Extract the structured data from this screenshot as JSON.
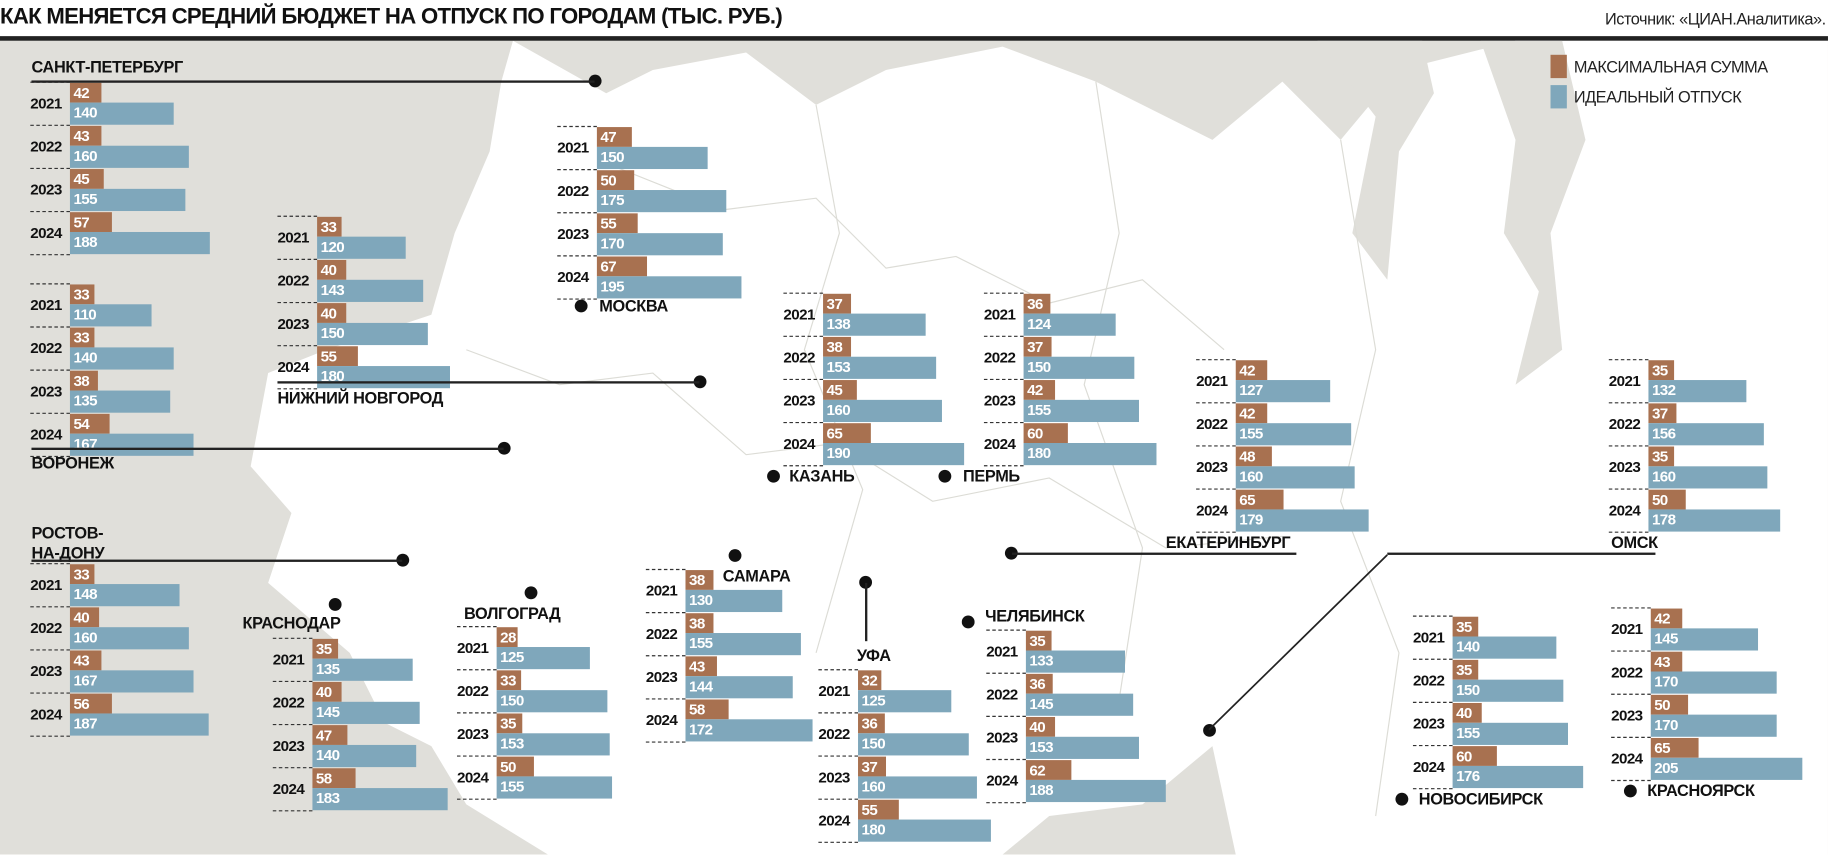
{
  "title": "КАК МЕНЯЕТСЯ СРЕДНИЙ БЮДЖЕТ НА ОТПУСК ПО ГОРОДАМ (ТЫС. РУБ.)",
  "source": "Источник: «ЦИАН.Аналитика».",
  "colors": {
    "max": "#a87150",
    "ideal": "#7fa7bb",
    "sea": "#e0dfda",
    "land": "#ffffff"
  },
  "chart_data": {
    "type": "bar",
    "orientation": "horizontal",
    "title": "КАК МЕНЯЕТСЯ СРЕДНИЙ БЮДЖЕТ НА ОТПУСК ПО ГОРОДАМ (ТЫС. РУБ.)",
    "legend": {
      "placement": "top-right",
      "entries": [
        "МАКСИМАЛЬНАЯ СУММА",
        "ИДЕАЛЬНЫЙ ОТПУСК"
      ]
    },
    "categories": [
      "2021",
      "2022",
      "2023",
      "2024"
    ],
    "cities": [
      {
        "name": "САНКТ-ПЕТЕРБУРГ",
        "max": [
          42,
          43,
          45,
          57
        ],
        "ideal": [
          140,
          160,
          155,
          188
        ]
      },
      {
        "name": "ВОРОНЕЖ",
        "max": [
          33,
          33,
          38,
          54
        ],
        "ideal": [
          110,
          140,
          135,
          167
        ]
      },
      {
        "name": "РОСТОВ-НА-ДОНУ",
        "max": [
          33,
          40,
          43,
          56
        ],
        "ideal": [
          148,
          160,
          167,
          187
        ]
      },
      {
        "name": "НИЖНИЙ НОВГОРОД",
        "max": [
          33,
          40,
          40,
          55
        ],
        "ideal": [
          120,
          143,
          150,
          180
        ]
      },
      {
        "name": "МОСКВА",
        "max": [
          47,
          50,
          55,
          67
        ],
        "ideal": [
          150,
          175,
          170,
          195
        ]
      },
      {
        "name": "КАЗАНЬ",
        "max": [
          37,
          38,
          45,
          65
        ],
        "ideal": [
          138,
          153,
          160,
          190
        ]
      },
      {
        "name": "ПЕРМЬ",
        "max": [
          36,
          37,
          42,
          60
        ],
        "ideal": [
          124,
          150,
          155,
          180
        ]
      },
      {
        "name": "ЕКАТЕРИНБУРГ",
        "max": [
          42,
          42,
          48,
          65
        ],
        "ideal": [
          127,
          155,
          160,
          179
        ]
      },
      {
        "name": "ОМСК",
        "max": [
          35,
          37,
          35,
          50
        ],
        "ideal": [
          132,
          156,
          160,
          178
        ]
      },
      {
        "name": "КРАСНОДАР",
        "max": [
          35,
          40,
          47,
          58
        ],
        "ideal": [
          135,
          145,
          140,
          183
        ]
      },
      {
        "name": "ВОЛГОГРАД",
        "max": [
          28,
          33,
          35,
          50
        ],
        "ideal": [
          125,
          150,
          153,
          155
        ]
      },
      {
        "name": "САМАРА",
        "max": [
          38,
          38,
          43,
          58
        ],
        "ideal": [
          130,
          155,
          144,
          172
        ]
      },
      {
        "name": "УФА",
        "max": [
          32,
          36,
          37,
          55
        ],
        "ideal": [
          125,
          150,
          160,
          180
        ]
      },
      {
        "name": "ЧЕЛЯБИНСК",
        "max": [
          35,
          36,
          40,
          62
        ],
        "ideal": [
          133,
          145,
          153,
          188
        ]
      },
      {
        "name": "НОВОСИБИРСК",
        "max": [
          35,
          35,
          40,
          60
        ],
        "ideal": [
          140,
          150,
          155,
          176
        ]
      },
      {
        "name": "КРАСНОЯРСК",
        "max": [
          42,
          43,
          50,
          65
        ],
        "ideal": [
          145,
          170,
          170,
          205
        ]
      }
    ]
  }
}
